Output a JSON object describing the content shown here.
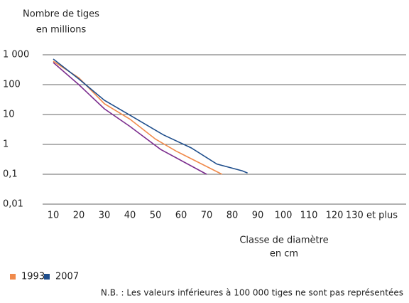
{
  "chart_data": {
    "type": "line",
    "ylabel": [
      "Nombre de tiges",
      "en millions"
    ],
    "xlabel": [
      "Classe de diamètre",
      "en cm"
    ],
    "note": "N.B. : Les valeurs inférieures à 100 000 tiges ne sont pas représentées",
    "log_y": true,
    "grid": true,
    "ylim": [
      0.01,
      1000
    ],
    "yticks": [
      {
        "value": 1000,
        "label": "1 000"
      },
      100,
      10,
      1,
      {
        "value": 0.1,
        "label": "0,1"
      },
      {
        "value": 0.01,
        "label": "0,01"
      }
    ],
    "xlim": [
      10,
      130
    ],
    "xticks": [
      10,
      20,
      30,
      40,
      50,
      60,
      70,
      80,
      90,
      100,
      110,
      120,
      {
        "value": 130,
        "label": "130 et plus"
      }
    ],
    "series": [
      {
        "name": "1993",
        "color": "#f08a4b",
        "x": [
          10,
          20,
          30,
          40,
          50,
          58,
          76
        ],
        "values": [
          610,
          170,
          23,
          7,
          1.5,
          0.6,
          0.1
        ]
      },
      {
        "name": "2007",
        "color": "#1f4e8c",
        "x": [
          10,
          20,
          30,
          40,
          53,
          64,
          74,
          84,
          86
        ],
        "values": [
          720,
          155,
          30,
          9.5,
          2.1,
          0.76,
          0.22,
          0.13,
          0.11
        ]
      },
      {
        "color": "#7b2d8e",
        "x": [
          10,
          20,
          30,
          40,
          52,
          70
        ],
        "values": [
          550,
          100,
          15.5,
          4,
          0.68,
          0.1
        ]
      }
    ]
  }
}
